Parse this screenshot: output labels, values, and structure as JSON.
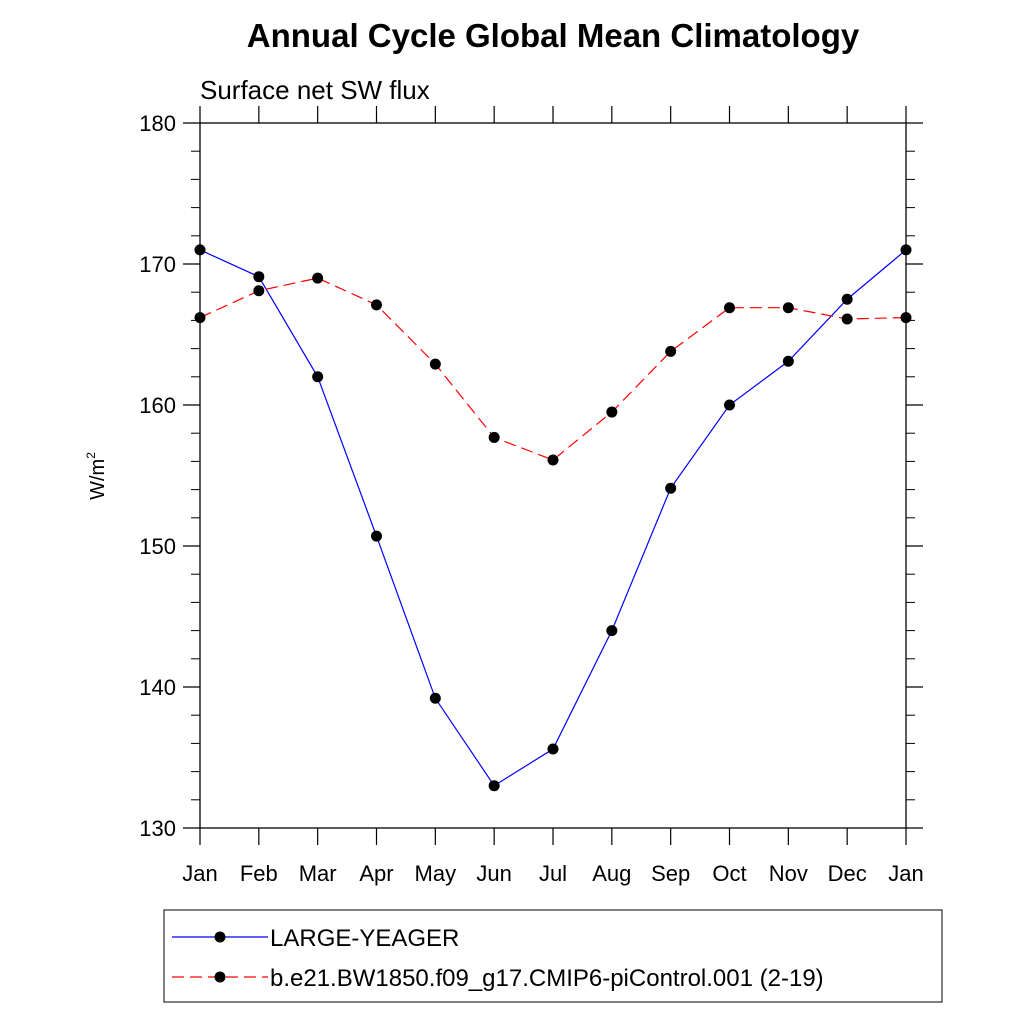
{
  "chart_data": {
    "type": "line",
    "title": "Annual Cycle Global Mean Climatology",
    "subtitle": "Surface net SW flux",
    "ylabel": "W/m",
    "ylabel_superscript": "2",
    "xlabel": "",
    "ylim": [
      130,
      180
    ],
    "yticks": [
      130,
      140,
      150,
      160,
      170,
      180
    ],
    "categories": [
      "Jan",
      "Feb",
      "Mar",
      "Apr",
      "May",
      "Jun",
      "Jul",
      "Aug",
      "Sep",
      "Oct",
      "Nov",
      "Dec",
      "Jan"
    ],
    "grid": false,
    "legend_position": "bottom",
    "series": [
      {
        "name": "LARGE-YEAGER",
        "color": "#0000ff",
        "line_style": "solid",
        "marker": "filled-circle",
        "values": [
          171.0,
          169.1,
          162.0,
          150.7,
          139.2,
          133.0,
          135.6,
          144.0,
          154.1,
          160.0,
          163.1,
          167.5,
          171.0
        ]
      },
      {
        "name": "b.e21.BW1850.f09_g17.CMIP6-piControl.001 (2-19)",
        "color": "#ff0000",
        "line_style": "dashed",
        "marker": "filled-circle",
        "values": [
          166.2,
          168.1,
          169.0,
          167.1,
          162.9,
          157.7,
          156.1,
          159.5,
          163.8,
          166.9,
          166.9,
          166.1,
          166.2
        ]
      }
    ]
  }
}
